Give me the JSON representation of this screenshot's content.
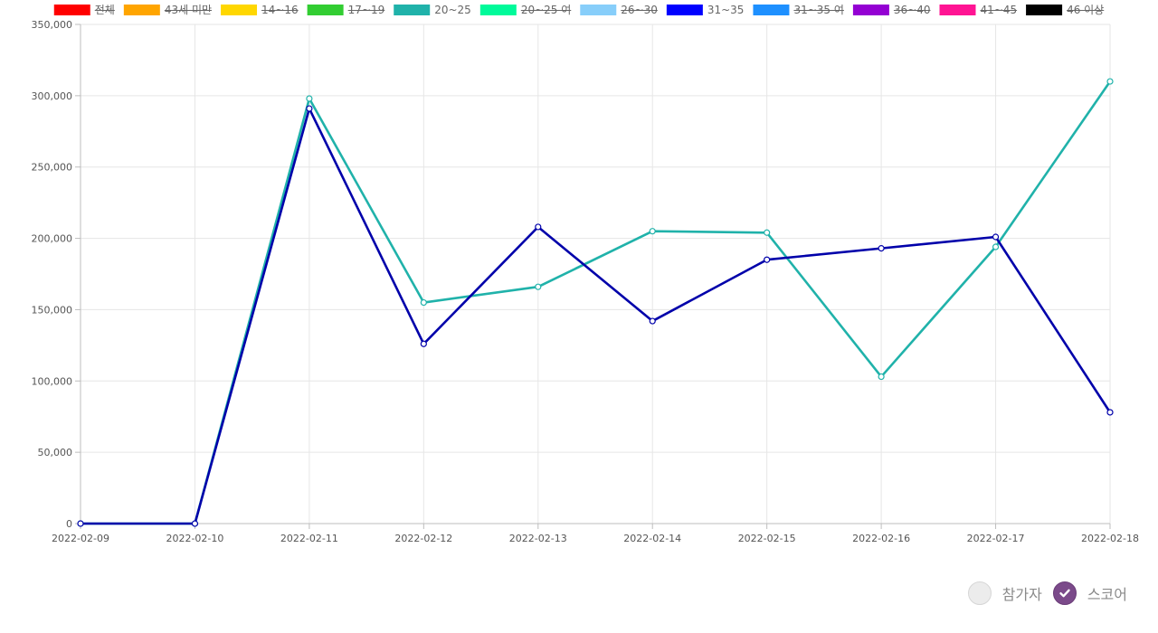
{
  "chart_data": {
    "type": "line",
    "categories": [
      "2022-02-09",
      "2022-02-10",
      "2022-02-11",
      "2022-02-12",
      "2022-02-13",
      "2022-02-14",
      "2022-02-15",
      "2022-02-16",
      "2022-02-17",
      "2022-02-18"
    ],
    "ylim": [
      0,
      350000
    ],
    "y_ticks": [
      0,
      50000,
      100000,
      150000,
      200000,
      250000,
      300000,
      350000
    ],
    "y_tick_labels": [
      "0",
      "50,000",
      "100,000",
      "150,000",
      "200,000",
      "250,000",
      "300,000",
      "350,000"
    ],
    "grid": true,
    "legend_position": "top",
    "legend": [
      {
        "name": "전체",
        "color": "#ff0000",
        "hidden": true
      },
      {
        "name": "43세 미만",
        "color": "#ffa500",
        "hidden": true
      },
      {
        "name": "14~16",
        "color": "#ffd700",
        "hidden": true
      },
      {
        "name": "17~19",
        "color": "#32cd32",
        "hidden": true
      },
      {
        "name": "20~25",
        "color": "#20b2aa",
        "hidden": false
      },
      {
        "name": "20~25 여",
        "color": "#00fa9a",
        "hidden": true
      },
      {
        "name": "26~30",
        "color": "#87cefa",
        "hidden": true
      },
      {
        "name": "31~35",
        "color": "#0000ff",
        "hidden": false
      },
      {
        "name": "31~35 여",
        "color": "#1e90ff",
        "hidden": true
      },
      {
        "name": "36~40",
        "color": "#9400d3",
        "hidden": true
      },
      {
        "name": "41~45",
        "color": "#ff1493",
        "hidden": true
      },
      {
        "name": "46 이상",
        "color": "#000000",
        "hidden": true
      }
    ],
    "series": [
      {
        "name": "20~25",
        "color": "#20b2aa",
        "values": [
          0,
          0,
          298000,
          155000,
          166000,
          205000,
          204000,
          103000,
          194000,
          310000
        ]
      },
      {
        "name": "31~35",
        "color": "#0000aa",
        "values": [
          0,
          0,
          291000,
          126000,
          208000,
          142000,
          185000,
          193000,
          201000,
          78000
        ]
      }
    ]
  },
  "toggles": {
    "participants": {
      "label": "참가자",
      "checked": false
    },
    "score": {
      "label": "스코어",
      "checked": true
    }
  }
}
